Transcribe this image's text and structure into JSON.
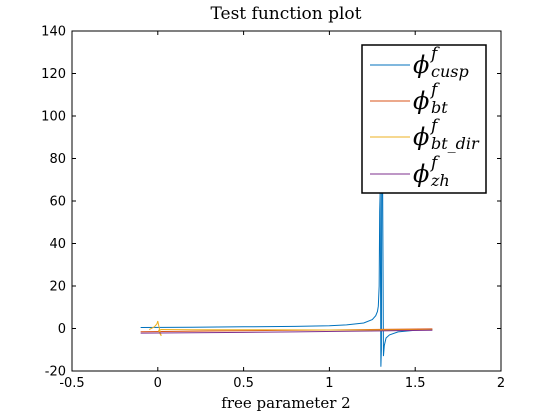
{
  "chart_data": {
    "type": "line",
    "title": "Test function plot",
    "xlabel": "free parameter 2",
    "ylabel": "",
    "xlim": [
      -0.5,
      2
    ],
    "ylim": [
      -20,
      140
    ],
    "xticks": [
      -0.5,
      0,
      0.5,
      1,
      1.5,
      2
    ],
    "xtick_labels": [
      "-0.5",
      "0",
      "0.5",
      "1",
      "1.5",
      "2"
    ],
    "yticks": [
      -20,
      0,
      20,
      40,
      60,
      80,
      100,
      120,
      140
    ],
    "ytick_labels": [
      "-20",
      "0",
      "20",
      "40",
      "60",
      "80",
      "100",
      "120",
      "140"
    ],
    "grid": false,
    "legend_position": "top-right",
    "series": [
      {
        "name": "ϕ_cusp^f",
        "name_main": "ϕ",
        "name_sup": "f",
        "name_sub": "cusp",
        "color": "#0072BD",
        "x": [
          -0.1,
          0.2,
          0.5,
          0.8,
          1.0,
          1.1,
          1.2,
          1.25,
          1.27,
          1.28,
          1.285,
          1.29,
          1.293,
          1.296,
          1.3,
          1.303,
          1.306,
          1.31,
          1.315,
          1.32,
          1.33,
          1.35,
          1.4,
          1.5,
          1.6
        ],
        "y": [
          0.5,
          0.6,
          0.8,
          1.0,
          1.3,
          1.7,
          2.6,
          4.2,
          6.0,
          8.0,
          10.5,
          20.0,
          55.0,
          65.0,
          -18.0,
          -10.0,
          130.0,
          70.0,
          -13.0,
          -8.0,
          -4.5,
          -3.0,
          -1.6,
          -0.8,
          -0.5
        ]
      },
      {
        "name": "ϕ_bt^f",
        "name_main": "ϕ",
        "name_sup": "f",
        "name_sub": "bt",
        "color": "#D95319",
        "x": [
          -0.1,
          0.3,
          0.7,
          1.0,
          1.3,
          1.6
        ],
        "y": [
          -1.5,
          -1.2,
          -0.9,
          -0.7,
          -0.4,
          -0.2
        ]
      },
      {
        "name": "ϕ_bt_dir^f",
        "name_main": "ϕ",
        "name_sup": "f",
        "name_sub": "bt_dir",
        "color": "#EDB120",
        "x": [
          -0.05,
          -0.02,
          -0.005,
          0.0,
          0.005,
          0.015,
          0.02,
          0.01,
          0.005,
          0.02,
          0.2,
          0.6,
          1.0,
          1.4,
          1.6
        ],
        "y": [
          -0.5,
          0.8,
          2.2,
          3.5,
          1.5,
          -2.0,
          -3.5,
          -2.0,
          -0.8,
          -0.5,
          -0.6,
          -0.6,
          -0.7,
          -0.7,
          -0.7
        ]
      },
      {
        "name": "ϕ_zh^f",
        "name_main": "ϕ",
        "name_sup": "f",
        "name_sub": "zh",
        "color": "#7E2F8E",
        "x": [
          -0.1,
          0.2,
          0.5,
          0.8,
          1.1,
          1.4,
          1.6
        ],
        "y": [
          -2.2,
          -2.0,
          -1.8,
          -1.6,
          -1.3,
          -1.0,
          -0.8
        ]
      }
    ]
  }
}
